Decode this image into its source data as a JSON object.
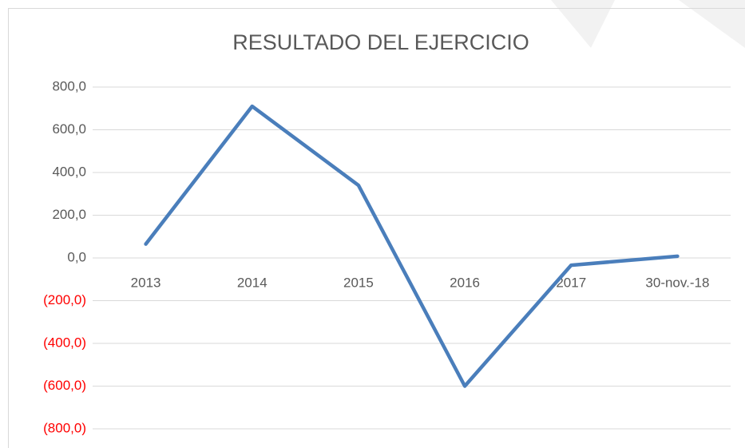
{
  "chart_data": {
    "type": "line",
    "title": "RESULTADO DEL EJERCICIO",
    "categories": [
      "2013",
      "2014",
      "2015",
      "2016",
      "2017",
      "30-nov.-18"
    ],
    "series": [
      {
        "name": "RESULTADO DEL EJERCICIO",
        "color": "#4a7ebb",
        "values": [
          65,
          710,
          340,
          -600,
          -34,
          8
        ]
      }
    ],
    "ylim": [
      -800,
      800
    ],
    "yticks": [
      {
        "value": 800,
        "label": "800,0"
      },
      {
        "value": 600,
        "label": "600,0"
      },
      {
        "value": 400,
        "label": "400,0"
      },
      {
        "value": 200,
        "label": "200,0"
      },
      {
        "value": 0,
        "label": "0,0"
      },
      {
        "value": -200,
        "label": "(200,0)"
      },
      {
        "value": -400,
        "label": "(400,0)"
      },
      {
        "value": -600,
        "label": "(600,0)"
      },
      {
        "value": -800,
        "label": "(800,0)"
      }
    ],
    "grid": true,
    "negative_tick_color": "#ff0000"
  }
}
